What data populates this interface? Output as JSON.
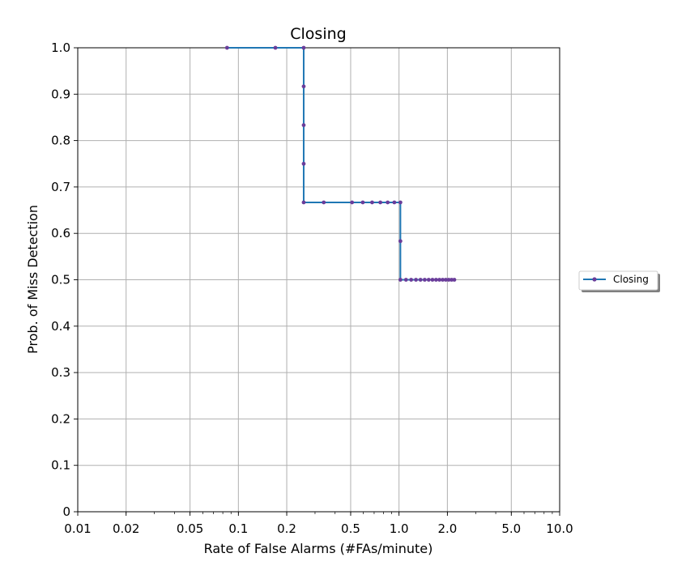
{
  "chart_data": {
    "type": "line",
    "title": "Closing",
    "xlabel": "Rate of False Alarms (#FAs/minute)",
    "ylabel": "Prob. of Miss Detection",
    "xscale": "log",
    "xlim": [
      0.01,
      10.0
    ],
    "ylim": [
      0,
      1.0
    ],
    "grid": true,
    "legend_position": "right",
    "x_ticks": [
      {
        "value": 0.01,
        "label": "0.01"
      },
      {
        "value": 0.02,
        "label": "0.02"
      },
      {
        "value": 0.05,
        "label": "0.05"
      },
      {
        "value": 0.1,
        "label": "0.1"
      },
      {
        "value": 0.2,
        "label": "0.2"
      },
      {
        "value": 0.5,
        "label": "0.5"
      },
      {
        "value": 1.0,
        "label": "1.0"
      },
      {
        "value": 2.0,
        "label": "2.0"
      },
      {
        "value": 5.0,
        "label": "5.0"
      },
      {
        "value": 10.0,
        "label": "10.0"
      }
    ],
    "y_ticks": [
      {
        "value": 0,
        "label": "0"
      },
      {
        "value": 0.1,
        "label": "0.1"
      },
      {
        "value": 0.2,
        "label": "0.2"
      },
      {
        "value": 0.3,
        "label": "0.3"
      },
      {
        "value": 0.4,
        "label": "0.4"
      },
      {
        "value": 0.5,
        "label": "0.5"
      },
      {
        "value": 0.6,
        "label": "0.6"
      },
      {
        "value": 0.7,
        "label": "0.7"
      },
      {
        "value": 0.8,
        "label": "0.8"
      },
      {
        "value": 0.9,
        "label": "0.9"
      },
      {
        "value": 1.0,
        "label": "1.0"
      }
    ],
    "series": [
      {
        "name": "Closing",
        "color": "#1f77b4",
        "marker_color": "#6a3d9a",
        "drawstyle": "steps-post",
        "x": [
          0.085,
          0.17,
          0.255,
          0.255,
          0.255,
          0.255,
          0.255,
          0.34,
          0.51,
          0.595,
          0.68,
          0.765,
          0.85,
          0.935,
          1.02,
          1.02,
          1.02,
          1.105,
          1.19,
          1.275,
          1.36,
          1.445,
          1.53,
          1.615,
          1.7,
          1.785,
          1.87,
          1.955,
          2.04,
          2.125,
          2.21
        ],
        "y": [
          1.0,
          1.0,
          1.0,
          0.9167,
          0.8333,
          0.75,
          0.6667,
          0.6667,
          0.6667,
          0.6667,
          0.6667,
          0.6667,
          0.6667,
          0.6667,
          0.6667,
          0.5833,
          0.5,
          0.5,
          0.5,
          0.5,
          0.5,
          0.5,
          0.5,
          0.5,
          0.5,
          0.5,
          0.5,
          0.5,
          0.5,
          0.5,
          0.5
        ]
      }
    ]
  }
}
